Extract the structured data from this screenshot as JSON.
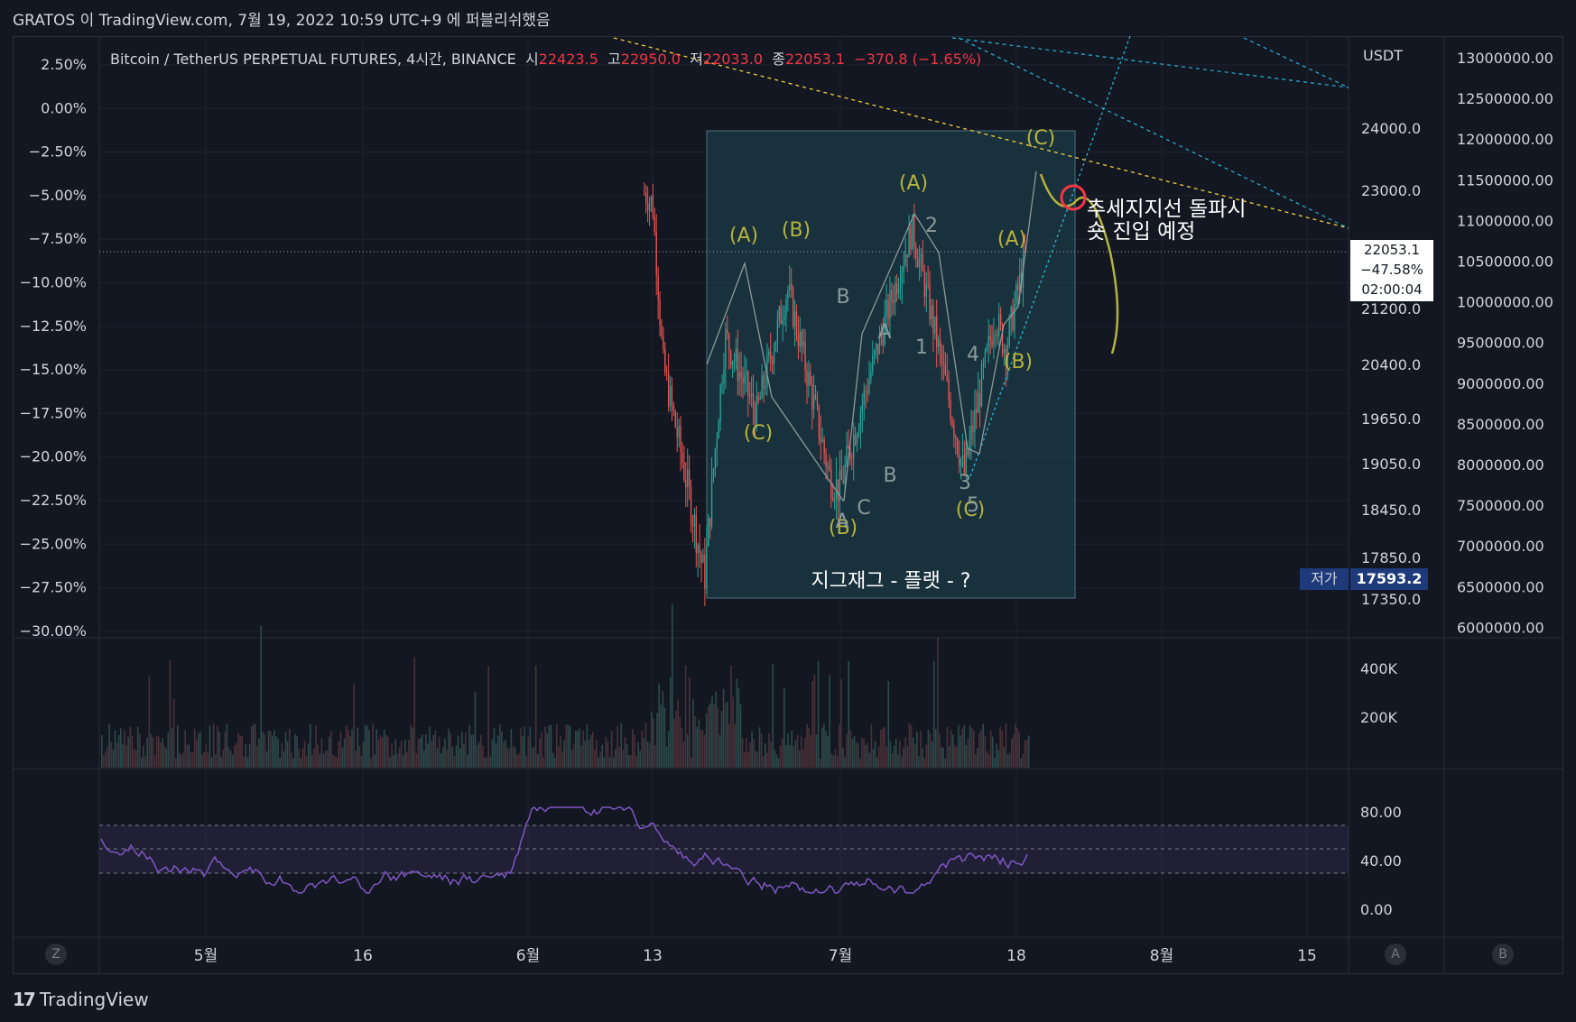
{
  "header": {
    "caption": "GRATOS 이 TradingView.com, 7월 19, 2022 10:59 UTC+9 에 퍼블리쉬했음"
  },
  "legend": {
    "symbol": "Bitcoin / TetherUS PERPETUAL FUTURES, 4시간, BINANCE",
    "open_label": "시",
    "open": "22423.5",
    "high_label": "고",
    "high": "22950.0",
    "low_label": "저",
    "low": "22033.0",
    "close_label": "종",
    "close": "22053.1",
    "change": "−370.8 (−1.65%)"
  },
  "price_scale": {
    "currency": "USDT",
    "ticks": [
      "24000.0",
      "23000.0",
      "21200.0",
      "20400.0",
      "19650.0",
      "19050.0",
      "18450.0",
      "17850.0",
      "17350.0"
    ]
  },
  "percent_scale": {
    "ticks": [
      "2.50%",
      "0.00%",
      "−2.50%",
      "−5.00%",
      "−7.50%",
      "−10.00%",
      "−12.50%",
      "−15.00%",
      "−17.50%",
      "−20.00%",
      "−22.50%",
      "−25.00%",
      "−27.50%",
      "−30.00%"
    ]
  },
  "right_scale": {
    "ticks": [
      "13000000.00",
      "12500000.00",
      "12000000.00",
      "11500000.00",
      "11000000.00",
      "10500000.00",
      "10000000.00",
      "9500000.00",
      "9000000.00",
      "8500000.00",
      "8000000.00",
      "7500000.00",
      "7000000.00",
      "6500000.00",
      "6000000.00"
    ]
  },
  "last_price": {
    "price": "22053.1",
    "percent": "−47.58%",
    "countdown": "02:00:04"
  },
  "low_marker": {
    "label": "저가",
    "value": "17593.2"
  },
  "volume_scale": {
    "ticks": [
      "400K",
      "200K"
    ]
  },
  "rsi_scale": {
    "ticks": [
      "80.00",
      "40.00",
      "0.00"
    ]
  },
  "time_axis": {
    "labels": [
      "5월",
      "16",
      "6월",
      "13",
      "7월",
      "18",
      "8월",
      "15"
    ]
  },
  "axis_buttons": {
    "left": "Z",
    "right_a": "A",
    "right_b": "B"
  },
  "annotations": {
    "box_caption": "지그재그 - 플랫 - ?",
    "note_line1": "추세지지선 돌파시",
    "note_line2": "숏 진입 예정",
    "wave_labels_yellow": [
      "(A)",
      "(B)",
      "(C)",
      "(A)",
      "(B)",
      "(C)",
      "(A)",
      "(B)",
      "(C)"
    ],
    "wave_labels_grey": [
      "B",
      "A",
      "B",
      "C",
      "1",
      "2",
      "3",
      "4",
      "5",
      "A"
    ]
  },
  "footer": {
    "brand": "TradingView"
  },
  "colors": {
    "background": "#131722",
    "up": "#26a69a",
    "down": "#ef5350",
    "wave_yellow": "#b5b33c",
    "trendline_yellow": "#f2d03b",
    "trendline_cyan": "#2ab4d6",
    "rsi": "#7e57c2",
    "box": "#1b3a45"
  },
  "chart_data": {
    "type": "candlestick",
    "symbol": "BTCUSDT.P",
    "timeframe": "4h",
    "x_labels": [
      "5월",
      "16",
      "6월",
      "13",
      "7월",
      "18",
      "8월",
      "15"
    ],
    "price_range": [
      17350,
      24000
    ],
    "ohlc_visible_path": [
      {
        "t": "6월 12",
        "price": 23000
      },
      {
        "t": "6월 13",
        "price": 22800
      },
      {
        "t": "6월 14",
        "price": 20400
      },
      {
        "t": "6월 18",
        "price": 17593.2
      },
      {
        "t": "6월 20",
        "price": 20800
      },
      {
        "t": "6월 23",
        "price": 19700
      },
      {
        "t": "6월 26",
        "price": 21500
      },
      {
        "t": "6월 30",
        "price": 18900
      },
      {
        "t": "7월 1",
        "price": 18700
      },
      {
        "t": "7월 8",
        "price": 22400
      },
      {
        "t": "7월 13",
        "price": 18900
      },
      {
        "t": "7월 16",
        "price": 21100
      },
      {
        "t": "7월 17",
        "price": 20600
      },
      {
        "t": "7월 19",
        "price": 22053.1
      }
    ],
    "rsi_range": [
      0,
      100
    ],
    "rsi_bands": [
      70,
      50,
      30
    ],
    "volume_ticks": [
      "400K",
      "200K"
    ]
  }
}
